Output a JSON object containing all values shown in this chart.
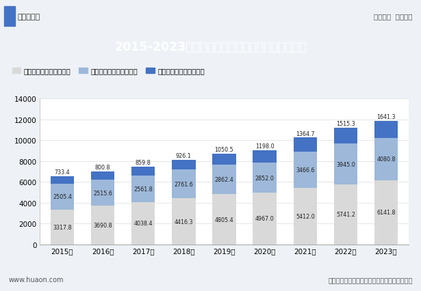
{
  "years": [
    "2015年",
    "2016年",
    "2017年",
    "2018年",
    "2019年",
    "2020年",
    "2021年",
    "2022年",
    "2023年"
  ],
  "sector3": [
    3317.8,
    3690.8,
    4038.4,
    4416.3,
    4805.4,
    4967.0,
    5412.0,
    5741.2,
    6141.8
  ],
  "sector2": [
    2505.4,
    2515.6,
    2561.8,
    2761.6,
    2862.4,
    2852.0,
    3466.6,
    3945.0,
    4080.8
  ],
  "sector1": [
    733.4,
    800.8,
    859.8,
    926.1,
    1050.5,
    1198.0,
    1364.7,
    1515.3,
    1641.3
  ],
  "sector3_color": "#d9d9d9",
  "sector2_color": "#9db8d9",
  "sector1_color": "#4472c4",
  "sector3_label": "第三产业增加值（亿元）",
  "sector2_label": "第二产业增加值（亿元）",
  "sector1_label": "第一产业增加值（亿元）",
  "title": "2015-2023年甘肃省第一、第二及第三产业增加值",
  "title_bg_color": "#4472c4",
  "title_text_color": "#ffffff",
  "ylim": [
    0,
    14000
  ],
  "yticks": [
    0,
    2000,
    4000,
    6000,
    8000,
    10000,
    12000,
    14000
  ],
  "footer_left": "www.huaon.com",
  "footer_right": "数据来源：甘肃省统计局；华经产业研究院整理",
  "header_left": "华经情报网",
  "header_right": "专业严谨  客观科学",
  "bg_color": "#eef2f7",
  "plot_bg_color": "#ffffff",
  "label_fontsize": 5.8,
  "tick_fontsize": 7.5
}
